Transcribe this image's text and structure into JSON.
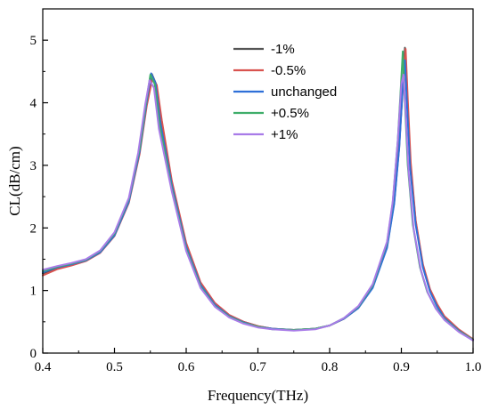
{
  "chart_data": {
    "type": "line",
    "xlabel": "Frequency(THz)",
    "ylabel": "CL(dB/cm)",
    "xlim": [
      0.4,
      1.0
    ],
    "ylim": [
      0,
      5.5
    ],
    "x_ticks": [
      0.4,
      0.5,
      0.6,
      0.7,
      0.8,
      0.9,
      1.0
    ],
    "y_ticks": [
      0,
      1,
      2,
      3,
      4,
      5
    ],
    "x_tick_labels": [
      "0.4",
      "0.5",
      "0.6",
      "0.7",
      "0.8",
      "0.9",
      "1.0"
    ],
    "y_tick_labels": [
      "0",
      "1",
      "2",
      "3",
      "4",
      "5"
    ],
    "grid": false,
    "legend_position": "top-right",
    "series": [
      {
        "name": "-1%",
        "color": "#555555",
        "points": [
          [
            0.4,
            1.27
          ],
          [
            0.42,
            1.36
          ],
          [
            0.44,
            1.41
          ],
          [
            0.46,
            1.48
          ],
          [
            0.48,
            1.62
          ],
          [
            0.5,
            1.9
          ],
          [
            0.52,
            2.45
          ],
          [
            0.535,
            3.25
          ],
          [
            0.545,
            4.05
          ],
          [
            0.552,
            4.46
          ],
          [
            0.558,
            4.3
          ],
          [
            0.565,
            3.7
          ],
          [
            0.58,
            2.7
          ],
          [
            0.6,
            1.72
          ],
          [
            0.62,
            1.1
          ],
          [
            0.64,
            0.78
          ],
          [
            0.66,
            0.6
          ],
          [
            0.68,
            0.5
          ],
          [
            0.7,
            0.43
          ],
          [
            0.72,
            0.39
          ],
          [
            0.75,
            0.37
          ],
          [
            0.78,
            0.39
          ],
          [
            0.8,
            0.44
          ],
          [
            0.82,
            0.55
          ],
          [
            0.84,
            0.72
          ],
          [
            0.86,
            1.05
          ],
          [
            0.88,
            1.7
          ],
          [
            0.89,
            2.4
          ],
          [
            0.897,
            3.3
          ],
          [
            0.902,
            4.3
          ],
          [
            0.905,
            4.88
          ],
          [
            0.908,
            4.1
          ],
          [
            0.912,
            3.1
          ],
          [
            0.92,
            2.1
          ],
          [
            0.93,
            1.4
          ],
          [
            0.94,
            1.0
          ],
          [
            0.95,
            0.76
          ],
          [
            0.96,
            0.57
          ],
          [
            0.98,
            0.37
          ],
          [
            1.0,
            0.22
          ]
        ]
      },
      {
        "name": "-0.5%",
        "color": "#d9534f",
        "points": [
          [
            0.4,
            1.24
          ],
          [
            0.42,
            1.34
          ],
          [
            0.44,
            1.4
          ],
          [
            0.46,
            1.47
          ],
          [
            0.48,
            1.6
          ],
          [
            0.5,
            1.87
          ],
          [
            0.52,
            2.4
          ],
          [
            0.535,
            3.18
          ],
          [
            0.545,
            3.95
          ],
          [
            0.553,
            4.4
          ],
          [
            0.559,
            4.28
          ],
          [
            0.566,
            3.72
          ],
          [
            0.58,
            2.75
          ],
          [
            0.6,
            1.76
          ],
          [
            0.62,
            1.13
          ],
          [
            0.64,
            0.8
          ],
          [
            0.66,
            0.61
          ],
          [
            0.68,
            0.5
          ],
          [
            0.7,
            0.43
          ],
          [
            0.72,
            0.39
          ],
          [
            0.75,
            0.37
          ],
          [
            0.78,
            0.39
          ],
          [
            0.8,
            0.44
          ],
          [
            0.82,
            0.55
          ],
          [
            0.84,
            0.73
          ],
          [
            0.86,
            1.07
          ],
          [
            0.88,
            1.74
          ],
          [
            0.89,
            2.45
          ],
          [
            0.897,
            3.35
          ],
          [
            0.903,
            4.4
          ],
          [
            0.906,
            4.86
          ],
          [
            0.909,
            4.05
          ],
          [
            0.913,
            3.05
          ],
          [
            0.92,
            2.12
          ],
          [
            0.93,
            1.42
          ],
          [
            0.94,
            1.02
          ],
          [
            0.95,
            0.78
          ],
          [
            0.96,
            0.59
          ],
          [
            0.98,
            0.38
          ],
          [
            1.0,
            0.22
          ]
        ]
      },
      {
        "name": "unchanged",
        "color": "#2e6fd8",
        "points": [
          [
            0.4,
            1.29
          ],
          [
            0.42,
            1.37
          ],
          [
            0.44,
            1.42
          ],
          [
            0.46,
            1.48
          ],
          [
            0.48,
            1.61
          ],
          [
            0.5,
            1.88
          ],
          [
            0.52,
            2.42
          ],
          [
            0.535,
            3.22
          ],
          [
            0.545,
            4.02
          ],
          [
            0.551,
            4.47
          ],
          [
            0.557,
            4.32
          ],
          [
            0.564,
            3.68
          ],
          [
            0.58,
            2.68
          ],
          [
            0.6,
            1.7
          ],
          [
            0.62,
            1.09
          ],
          [
            0.64,
            0.77
          ],
          [
            0.66,
            0.59
          ],
          [
            0.68,
            0.49
          ],
          [
            0.7,
            0.42
          ],
          [
            0.72,
            0.39
          ],
          [
            0.75,
            0.37
          ],
          [
            0.78,
            0.39
          ],
          [
            0.8,
            0.44
          ],
          [
            0.82,
            0.55
          ],
          [
            0.84,
            0.72
          ],
          [
            0.86,
            1.04
          ],
          [
            0.88,
            1.68
          ],
          [
            0.89,
            2.38
          ],
          [
            0.897,
            3.28
          ],
          [
            0.902,
            4.25
          ],
          [
            0.905,
            4.68
          ],
          [
            0.908,
            3.95
          ],
          [
            0.912,
            2.98
          ],
          [
            0.92,
            2.05
          ],
          [
            0.93,
            1.37
          ],
          [
            0.94,
            0.98
          ],
          [
            0.95,
            0.74
          ],
          [
            0.96,
            0.56
          ],
          [
            0.98,
            0.36
          ],
          [
            1.0,
            0.21
          ]
        ]
      },
      {
        "name": "+0.5%",
        "color": "#3fae6a",
        "points": [
          [
            0.4,
            1.31
          ],
          [
            0.42,
            1.38
          ],
          [
            0.44,
            1.43
          ],
          [
            0.46,
            1.49
          ],
          [
            0.48,
            1.63
          ],
          [
            0.5,
            1.91
          ],
          [
            0.52,
            2.46
          ],
          [
            0.535,
            3.27
          ],
          [
            0.545,
            4.07
          ],
          [
            0.55,
            4.45
          ],
          [
            0.556,
            4.3
          ],
          [
            0.563,
            3.64
          ],
          [
            0.58,
            2.62
          ],
          [
            0.6,
            1.66
          ],
          [
            0.62,
            1.06
          ],
          [
            0.64,
            0.75
          ],
          [
            0.66,
            0.58
          ],
          [
            0.68,
            0.48
          ],
          [
            0.7,
            0.42
          ],
          [
            0.72,
            0.38
          ],
          [
            0.75,
            0.37
          ],
          [
            0.78,
            0.39
          ],
          [
            0.8,
            0.44
          ],
          [
            0.82,
            0.56
          ],
          [
            0.84,
            0.74
          ],
          [
            0.86,
            1.08
          ],
          [
            0.88,
            1.76
          ],
          [
            0.888,
            2.4
          ],
          [
            0.895,
            3.4
          ],
          [
            0.9,
            4.4
          ],
          [
            0.902,
            4.82
          ],
          [
            0.905,
            4.0
          ],
          [
            0.909,
            3.0
          ],
          [
            0.916,
            2.05
          ],
          [
            0.926,
            1.37
          ],
          [
            0.936,
            0.98
          ],
          [
            0.948,
            0.72
          ],
          [
            0.96,
            0.54
          ],
          [
            0.98,
            0.35
          ],
          [
            1.0,
            0.21
          ]
        ]
      },
      {
        "name": "+1%",
        "color": "#a87be8",
        "points": [
          [
            0.4,
            1.33
          ],
          [
            0.42,
            1.39
          ],
          [
            0.44,
            1.44
          ],
          [
            0.46,
            1.5
          ],
          [
            0.48,
            1.64
          ],
          [
            0.5,
            1.93
          ],
          [
            0.52,
            2.48
          ],
          [
            0.533,
            3.2
          ],
          [
            0.543,
            3.98
          ],
          [
            0.549,
            4.36
          ],
          [
            0.555,
            4.24
          ],
          [
            0.562,
            3.58
          ],
          [
            0.58,
            2.58
          ],
          [
            0.6,
            1.63
          ],
          [
            0.62,
            1.04
          ],
          [
            0.64,
            0.74
          ],
          [
            0.66,
            0.57
          ],
          [
            0.68,
            0.47
          ],
          [
            0.7,
            0.41
          ],
          [
            0.72,
            0.38
          ],
          [
            0.75,
            0.36
          ],
          [
            0.78,
            0.38
          ],
          [
            0.8,
            0.44
          ],
          [
            0.82,
            0.56
          ],
          [
            0.84,
            0.75
          ],
          [
            0.86,
            1.1
          ],
          [
            0.88,
            1.78
          ],
          [
            0.888,
            2.42
          ],
          [
            0.895,
            3.4
          ],
          [
            0.9,
            4.3
          ],
          [
            0.903,
            4.45
          ],
          [
            0.906,
            3.85
          ],
          [
            0.91,
            2.9
          ],
          [
            0.917,
            2.0
          ],
          [
            0.927,
            1.34
          ],
          [
            0.937,
            0.96
          ],
          [
            0.948,
            0.71
          ],
          [
            0.96,
            0.53
          ],
          [
            0.98,
            0.34
          ],
          [
            1.0,
            0.2
          ]
        ]
      }
    ]
  }
}
